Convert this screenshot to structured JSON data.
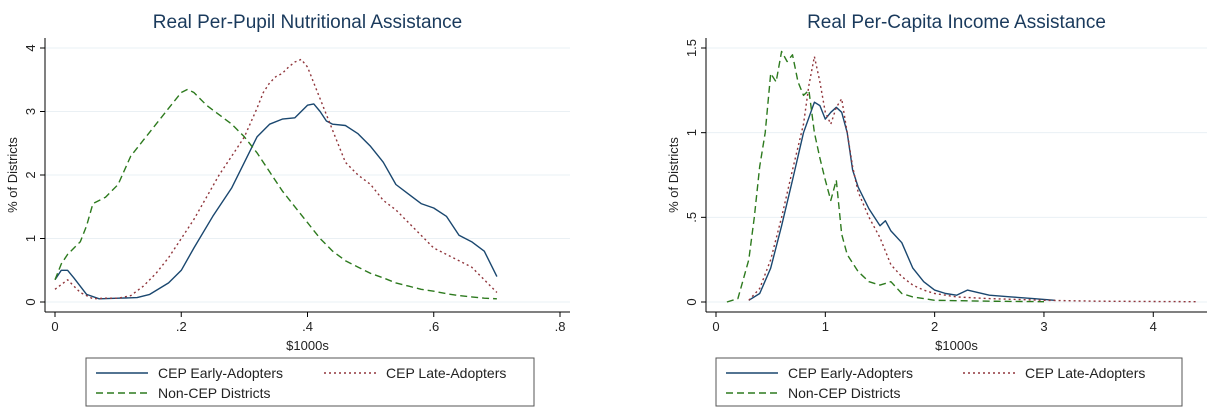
{
  "colors": {
    "early": "#1a476f",
    "late": "#90353b",
    "noncep": "#2d7a1e",
    "grid": "#eaf0f4",
    "axis": "#000000",
    "text": "#222222",
    "title": "#1a3a5c"
  },
  "chart_data": [
    {
      "type": "line",
      "title": "Real Per-Pupil Nutritional Assistance",
      "xlabel": "$1000s",
      "ylabel": "% of Districts",
      "xlim": [
        0,
        0.8
      ],
      "ylim": [
        0,
        4
      ],
      "xticks": [
        "0",
        ".2",
        ".4",
        ".6",
        ".8"
      ],
      "xtick_values": [
        0,
        0.2,
        0.4,
        0.6,
        0.8
      ],
      "yticks": [
        "0",
        "1",
        "2",
        "3",
        "4"
      ],
      "ytick_values": [
        0,
        1,
        2,
        3,
        4
      ],
      "legend": {
        "position": "bottom",
        "entries": [
          "CEP Early-Adopters",
          "CEP Late-Adopters",
          "Non-CEP Districts"
        ]
      },
      "series": [
        {
          "name": "CEP Early-Adopters",
          "style": "solid",
          "x": [
            0,
            0.01,
            0.02,
            0.03,
            0.05,
            0.07,
            0.1,
            0.13,
            0.15,
            0.18,
            0.2,
            0.22,
            0.25,
            0.28,
            0.3,
            0.32,
            0.34,
            0.36,
            0.38,
            0.39,
            0.4,
            0.41,
            0.42,
            0.43,
            0.44,
            0.46,
            0.48,
            0.5,
            0.52,
            0.54,
            0.56,
            0.58,
            0.6,
            0.62,
            0.64,
            0.66,
            0.68,
            0.7
          ],
          "values": [
            0.35,
            0.5,
            0.5,
            0.38,
            0.12,
            0.05,
            0.06,
            0.07,
            0.12,
            0.3,
            0.5,
            0.85,
            1.35,
            1.8,
            2.2,
            2.6,
            2.8,
            2.88,
            2.9,
            3.0,
            3.1,
            3.12,
            3.0,
            2.85,
            2.8,
            2.78,
            2.65,
            2.45,
            2.2,
            1.85,
            1.7,
            1.55,
            1.48,
            1.35,
            1.05,
            0.95,
            0.8,
            0.4
          ]
        },
        {
          "name": "CEP Late-Adopters",
          "style": "dot",
          "x": [
            0,
            0.02,
            0.04,
            0.06,
            0.08,
            0.1,
            0.12,
            0.14,
            0.16,
            0.18,
            0.2,
            0.22,
            0.24,
            0.26,
            0.28,
            0.3,
            0.32,
            0.33,
            0.34,
            0.35,
            0.36,
            0.37,
            0.38,
            0.39,
            0.4,
            0.42,
            0.44,
            0.46,
            0.48,
            0.5,
            0.52,
            0.54,
            0.56,
            0.58,
            0.6,
            0.62,
            0.64,
            0.66,
            0.68,
            0.7
          ],
          "values": [
            0.2,
            0.35,
            0.15,
            0.05,
            0.06,
            0.06,
            0.1,
            0.25,
            0.45,
            0.7,
            1.0,
            1.3,
            1.65,
            2.0,
            2.3,
            2.6,
            3.05,
            3.3,
            3.45,
            3.55,
            3.6,
            3.7,
            3.78,
            3.82,
            3.7,
            3.2,
            2.7,
            2.2,
            2.0,
            1.85,
            1.6,
            1.45,
            1.25,
            1.05,
            0.85,
            0.75,
            0.65,
            0.55,
            0.35,
            0.15
          ]
        },
        {
          "name": "Non-CEP Districts",
          "style": "dash",
          "x": [
            0,
            0.01,
            0.02,
            0.04,
            0.05,
            0.06,
            0.08,
            0.1,
            0.12,
            0.14,
            0.16,
            0.18,
            0.2,
            0.21,
            0.22,
            0.24,
            0.26,
            0.28,
            0.3,
            0.32,
            0.34,
            0.36,
            0.38,
            0.4,
            0.42,
            0.44,
            0.46,
            0.48,
            0.5,
            0.52,
            0.54,
            0.56,
            0.58,
            0.6,
            0.62,
            0.64,
            0.66,
            0.68,
            0.7
          ],
          "values": [
            0.35,
            0.6,
            0.75,
            0.95,
            1.2,
            1.55,
            1.65,
            1.85,
            2.3,
            2.55,
            2.8,
            3.05,
            3.3,
            3.35,
            3.3,
            3.1,
            2.95,
            2.8,
            2.6,
            2.35,
            2.05,
            1.75,
            1.5,
            1.25,
            1.0,
            0.8,
            0.65,
            0.55,
            0.45,
            0.38,
            0.3,
            0.25,
            0.2,
            0.17,
            0.13,
            0.1,
            0.08,
            0.06,
            0.05
          ]
        }
      ]
    },
    {
      "type": "line",
      "title": "Real Per-Capita Income Assistance",
      "xlabel": "$1000s",
      "ylabel": "% of Districts",
      "xlim": [
        0,
        4.4
      ],
      "ylim": [
        0,
        1.5
      ],
      "xticks": [
        "0",
        "1",
        "2",
        "3",
        "4"
      ],
      "xtick_values": [
        0,
        1,
        2,
        3,
        4
      ],
      "yticks": [
        "0",
        ".5",
        "1",
        "1.5"
      ],
      "ytick_values": [
        0,
        0.5,
        1,
        1.5
      ],
      "legend": {
        "position": "bottom",
        "entries": [
          "CEP Early-Adopters",
          "CEP Late-Adopters",
          "Non-CEP Districts"
        ]
      },
      "series": [
        {
          "name": "CEP Early-Adopters",
          "style": "solid",
          "x": [
            0.3,
            0.4,
            0.5,
            0.6,
            0.7,
            0.8,
            0.9,
            0.95,
            1.0,
            1.05,
            1.1,
            1.15,
            1.2,
            1.25,
            1.3,
            1.4,
            1.5,
            1.55,
            1.6,
            1.7,
            1.8,
            1.9,
            2.0,
            2.1,
            2.2,
            2.3,
            2.5,
            2.7,
            2.9,
            3.1
          ],
          "values": [
            0.01,
            0.05,
            0.2,
            0.45,
            0.72,
            1.0,
            1.18,
            1.16,
            1.08,
            1.12,
            1.15,
            1.12,
            1.0,
            0.78,
            0.68,
            0.55,
            0.45,
            0.48,
            0.42,
            0.35,
            0.2,
            0.12,
            0.07,
            0.05,
            0.04,
            0.07,
            0.04,
            0.03,
            0.02,
            0.01
          ]
        },
        {
          "name": "CEP Late-Adopters",
          "style": "dot",
          "x": [
            0.3,
            0.4,
            0.5,
            0.6,
            0.7,
            0.8,
            0.85,
            0.9,
            0.95,
            1.0,
            1.05,
            1.1,
            1.15,
            1.2,
            1.25,
            1.3,
            1.4,
            1.5,
            1.6,
            1.7,
            1.8,
            1.9,
            2.0,
            2.2,
            2.5,
            3.0,
            3.5,
            4.0,
            4.4
          ],
          "values": [
            0.01,
            0.08,
            0.25,
            0.5,
            0.78,
            1.05,
            1.28,
            1.45,
            1.3,
            1.12,
            1.05,
            1.15,
            1.2,
            1.0,
            0.8,
            0.65,
            0.5,
            0.38,
            0.22,
            0.15,
            0.1,
            0.07,
            0.05,
            0.03,
            0.02,
            0.01,
            0.005,
            0.003,
            0.002
          ]
        },
        {
          "name": "Non-CEP Districts",
          "style": "dash",
          "x": [
            0.1,
            0.2,
            0.3,
            0.35,
            0.4,
            0.45,
            0.5,
            0.55,
            0.6,
            0.65,
            0.7,
            0.75,
            0.8,
            0.85,
            0.9,
            0.95,
            1.0,
            1.05,
            1.1,
            1.15,
            1.2,
            1.3,
            1.4,
            1.5,
            1.6,
            1.7,
            1.8,
            2.0,
            2.5,
            3.0
          ],
          "values": [
            0.0,
            0.02,
            0.25,
            0.5,
            0.8,
            1.0,
            1.35,
            1.3,
            1.48,
            1.42,
            1.46,
            1.3,
            1.22,
            1.25,
            1.0,
            0.85,
            0.72,
            0.6,
            0.72,
            0.4,
            0.28,
            0.18,
            0.12,
            0.1,
            0.12,
            0.05,
            0.03,
            0.01,
            0.005,
            0.002
          ]
        }
      ]
    }
  ]
}
